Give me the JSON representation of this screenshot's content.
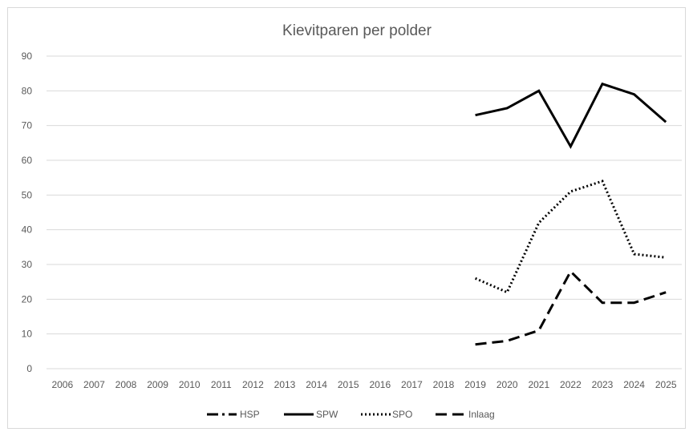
{
  "chart_data": {
    "type": "line",
    "title": "Kievitparen per polder",
    "xlabel": "",
    "ylabel": "",
    "categories": [
      "2006",
      "2007",
      "2008",
      "2009",
      "2010",
      "2011",
      "2012",
      "2013",
      "2014",
      "2015",
      "2016",
      "2017",
      "2018",
      "2019",
      "2020",
      "2021",
      "2022",
      "2023",
      "2024",
      "2025"
    ],
    "ylim": [
      0,
      90
    ],
    "yticks": [
      "0",
      "10",
      "20",
      "30",
      "40",
      "50",
      "60",
      "70",
      "80",
      "90"
    ],
    "grid": true,
    "legend_position": "bottom",
    "series": [
      {
        "name": "HSP",
        "dash": "longdash-dot",
        "color": "#000000",
        "values": [
          null,
          null,
          null,
          null,
          null,
          null,
          null,
          null,
          null,
          null,
          null,
          null,
          null,
          null,
          null,
          null,
          null,
          null,
          null,
          null
        ]
      },
      {
        "name": "SPW",
        "dash": "solid",
        "color": "#000000",
        "values": [
          null,
          null,
          null,
          null,
          null,
          null,
          null,
          null,
          null,
          null,
          null,
          null,
          null,
          73,
          75,
          80,
          64,
          82,
          79,
          71
        ]
      },
      {
        "name": "SPO",
        "dash": "dotted",
        "color": "#000000",
        "values": [
          null,
          null,
          null,
          null,
          null,
          null,
          null,
          null,
          null,
          null,
          null,
          null,
          null,
          26,
          22,
          42,
          51,
          54,
          33,
          32
        ]
      },
      {
        "name": "Inlaag",
        "dash": "dashed",
        "color": "#000000",
        "values": [
          null,
          null,
          null,
          null,
          null,
          null,
          null,
          null,
          null,
          null,
          null,
          null,
          null,
          7,
          8,
          11,
          28,
          19,
          19,
          22
        ]
      }
    ]
  }
}
